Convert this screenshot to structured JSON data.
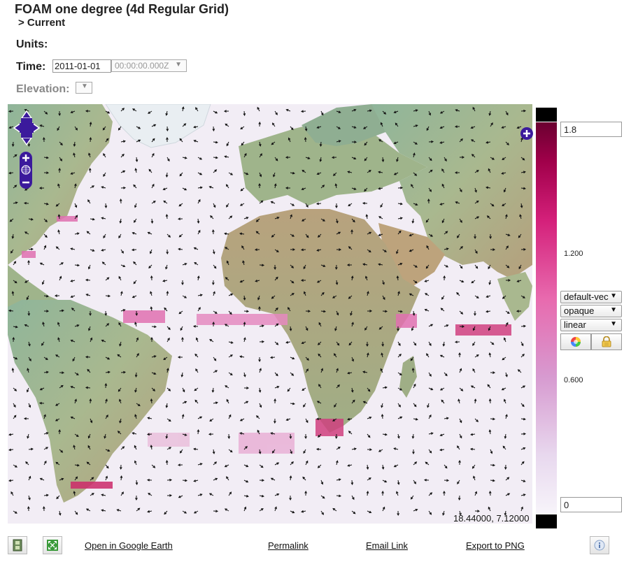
{
  "header": {
    "title": "FOAM one degree (4d Regular Grid)",
    "subtitle": "> Current",
    "units_label": "Units:",
    "time_label": "Time:",
    "elevation_label": "Elevation:"
  },
  "time": {
    "date_value": "2011-01-01",
    "time_value": "00:00:00.000Z"
  },
  "map": {
    "coordinates": "18.44000, 7.12000"
  },
  "colorbar": {
    "max_value": "1.8",
    "min_value": "0",
    "tick_labels": [
      "1.200",
      "0.600"
    ],
    "colors": [
      "#6b0030",
      "#a0004a",
      "#d4207a",
      "#e86aae",
      "#d79ad0",
      "#e8d8ee",
      "#f7f4fa"
    ]
  },
  "controls": {
    "style_value": "default-vec",
    "opacity_value": "opaque",
    "scale_value": "linear"
  },
  "footer": {
    "links": [
      "Open in Google Earth",
      "Permalink",
      "Email Link",
      "Export to PNG"
    ]
  },
  "icons": [
    "pan-arrows-icon",
    "zoom-in-icon",
    "globe-icon",
    "zoom-out-icon",
    "layer-switcher-icon",
    "palette-icon",
    "lock-icon",
    "film-icon",
    "fullscreen-icon",
    "info-icon"
  ]
}
